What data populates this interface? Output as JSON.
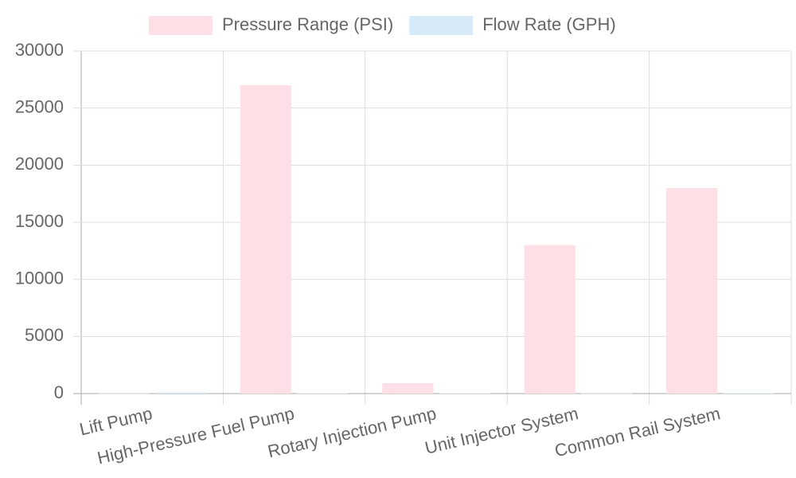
{
  "chart_data": {
    "type": "bar",
    "categories": [
      "Lift Pump",
      "High-Pressure Fuel Pump",
      "Rotary Injection Pump",
      "Unit Injector System",
      "Common Rail System"
    ],
    "series": [
      {
        "name": "Pressure Range (PSI)",
        "color": "#fddfe5",
        "border": "#fcc3cf",
        "values": [
          15,
          27000,
          900,
          13000,
          18000
        ]
      },
      {
        "name": "Flow Rate (GPH)",
        "color": "#d7eaf9",
        "border": "#b6d8f3",
        "values": [
          100,
          40,
          30,
          20,
          50
        ]
      }
    ],
    "ylim": [
      0,
      30000
    ],
    "yticks": [
      0,
      5000,
      10000,
      15000,
      20000,
      25000,
      30000
    ],
    "grid": true
  }
}
